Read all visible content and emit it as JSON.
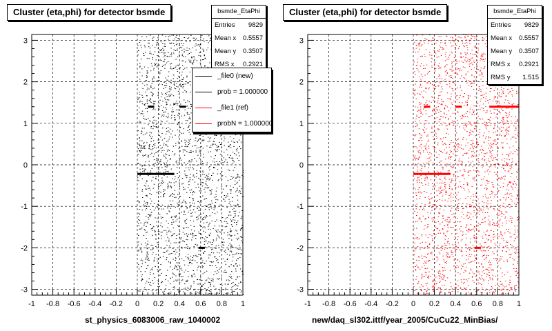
{
  "chart_data": [
    {
      "type": "scatter",
      "title": "Cluster (eta,phi) for detector bsmde",
      "xlabel": "st_physics_6083006_raw_1040002",
      "xlim": [
        -1,
        1
      ],
      "ylim": [
        -3.14,
        3.14
      ],
      "x_ticks": [
        "-1",
        "-0.8",
        "-0.6",
        "-0.4",
        "-0.2",
        "0",
        "0.2",
        "0.4",
        "0.6",
        "0.8",
        "1"
      ],
      "y_ticks": [
        "-3",
        "-2",
        "-1",
        "0",
        "1",
        "2",
        "3"
      ],
      "grid": true,
      "marker_color": "#000000",
      "occupied_x_range": [
        0,
        1
      ],
      "hot_spots": [
        {
          "x": [
            0.1,
            0.16
          ],
          "y": 1.4
        },
        {
          "x": [
            0.4,
            0.46
          ],
          "y": 1.4
        },
        {
          "x": [
            0.0,
            0.35
          ],
          "y": -0.22
        },
        {
          "x": [
            0.58,
            0.64
          ],
          "y": -2.0
        }
      ],
      "stats": {
        "name": "bsmde_EtaPhi",
        "rows": [
          {
            "label": "Entries",
            "value": "9829"
          },
          {
            "label": "Mean x",
            "value": "0.5557"
          },
          {
            "label": "Mean y",
            "value": "0.3507"
          },
          {
            "label": "RMS x",
            "value": "0.2921"
          }
        ]
      },
      "legend": {
        "placement": "top-right",
        "entries": [
          {
            "label": "_file0 (new)",
            "color": "#000000"
          },
          {
            "label": "prob = 1.000000",
            "color": "#000000"
          },
          {
            "label": "_file1 (ref)",
            "color": "#ff0000"
          },
          {
            "label": "probN = 1.000000",
            "color": "#ff0000"
          }
        ]
      }
    },
    {
      "type": "scatter",
      "title": "Cluster (eta,phi) for detector bsmde",
      "xlabel": "new/daq_sl302.ittf/year_2005/CuCu22_MinBias/",
      "xlim": [
        -1,
        1
      ],
      "ylim": [
        -3.14,
        3.14
      ],
      "x_ticks": [
        "-1",
        "-0.8",
        "-0.6",
        "-0.4",
        "-0.2",
        "0",
        "0.2",
        "0.4",
        "0.6",
        "0.8",
        "1"
      ],
      "y_ticks": [
        "-3",
        "-2",
        "-1",
        "0",
        "1",
        "2",
        "3"
      ],
      "grid": true,
      "marker_color": "#ff0000",
      "occupied_x_range": [
        0,
        1
      ],
      "hot_spots": [
        {
          "x": [
            0.1,
            0.16
          ],
          "y": 1.4
        },
        {
          "x": [
            0.4,
            0.46
          ],
          "y": 1.4
        },
        {
          "x": [
            0.72,
            1.0
          ],
          "y": 1.4
        },
        {
          "x": [
            0.0,
            0.35
          ],
          "y": -0.22
        },
        {
          "x": [
            0.58,
            0.64
          ],
          "y": -2.0
        }
      ],
      "stats": {
        "name": "bsmde_EtaPhi",
        "rows": [
          {
            "label": "Entries",
            "value": "9829"
          },
          {
            "label": "Mean x",
            "value": "0.5557"
          },
          {
            "label": "Mean y",
            "value": "0.3507"
          },
          {
            "label": "RMS x",
            "value": "0.2921"
          },
          {
            "label": "RMS y",
            "value": "1.515"
          }
        ]
      }
    }
  ]
}
